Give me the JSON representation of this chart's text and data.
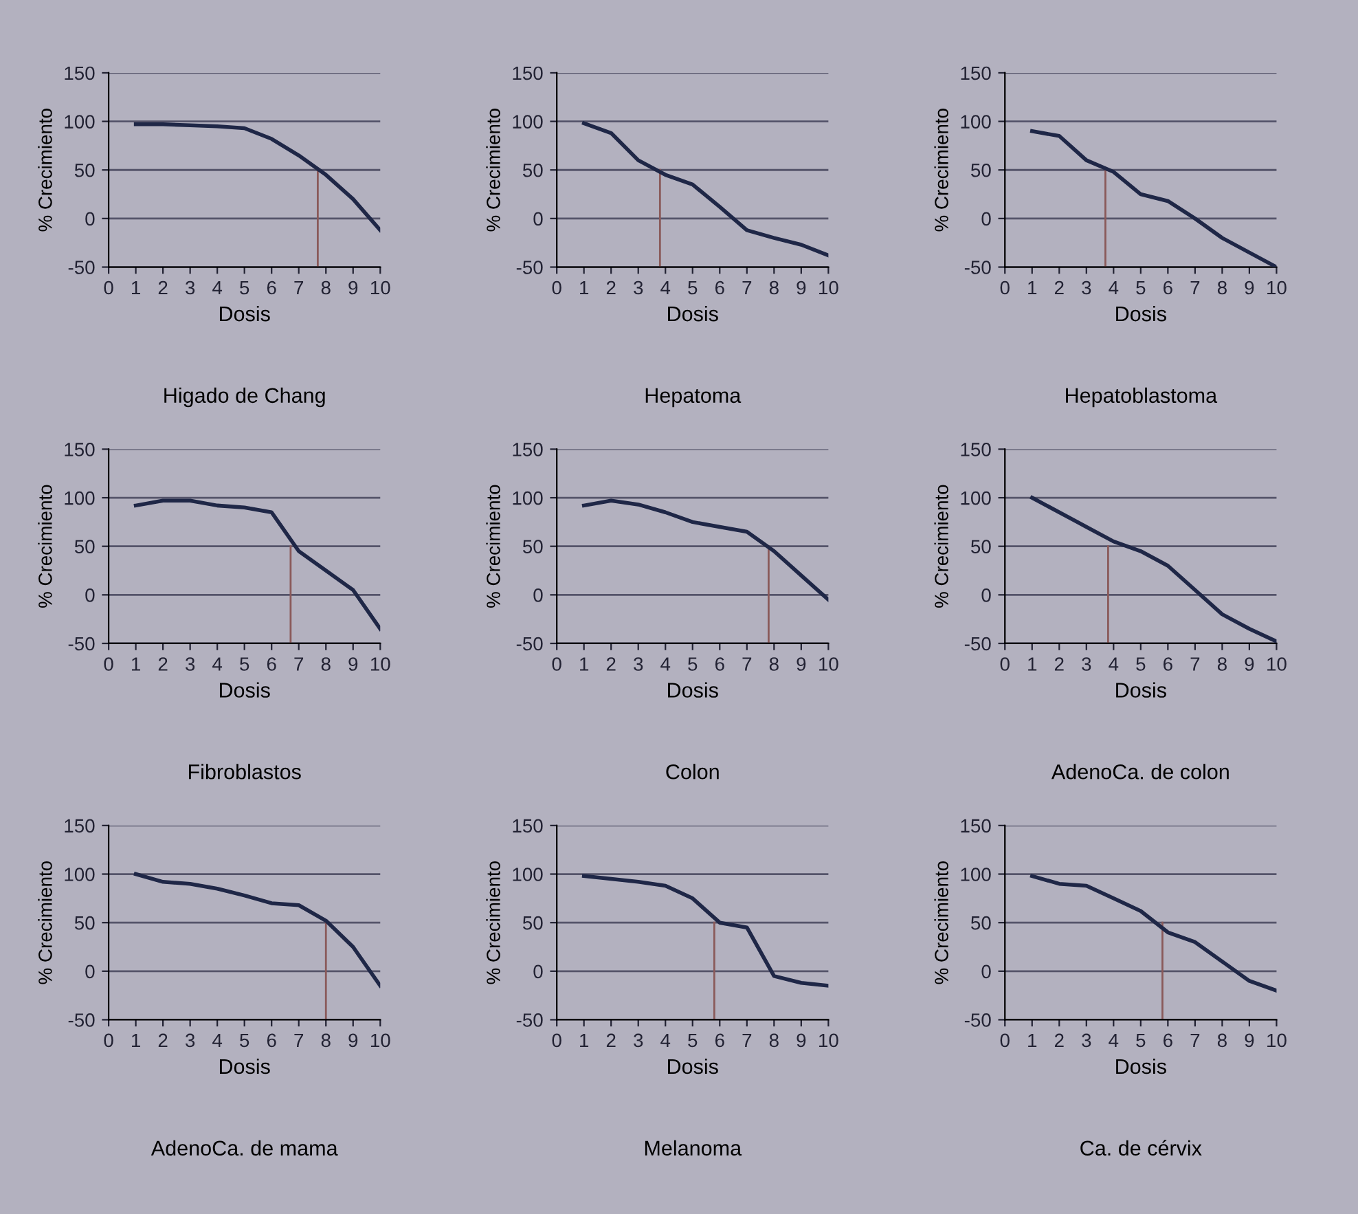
{
  "chart_data": [
    {
      "type": "line",
      "title": "Higado de Chang",
      "xlabel": "Dosis",
      "ylabel": "% Crecimiento",
      "x": [
        1,
        2,
        3,
        4,
        5,
        6,
        7,
        8,
        9,
        10
      ],
      "series": [
        {
          "color": "#1f2747",
          "values": [
            97,
            97,
            96,
            95,
            93,
            82,
            65,
            45,
            20,
            -12
          ]
        }
      ],
      "xlim": [
        0,
        10
      ],
      "xticks": [
        0,
        1,
        2,
        3,
        4,
        5,
        6,
        7,
        8,
        9,
        10
      ],
      "ylim": [
        -50,
        150
      ],
      "yticks": [
        -50,
        0,
        50,
        100,
        150
      ],
      "grid": "y",
      "ref_lines": [
        {
          "axis": "x",
          "value": 7.7,
          "color": "#8a5a5a"
        }
      ]
    },
    {
      "type": "line",
      "title": "Hepatoma",
      "xlabel": "Dosis",
      "ylabel": "% Crecimiento",
      "x": [
        1,
        2,
        3,
        4,
        5,
        6,
        7,
        8,
        9,
        10
      ],
      "series": [
        {
          "color": "#1f2747",
          "values": [
            98,
            88,
            60,
            45,
            35,
            12,
            -12,
            -20,
            -27,
            -38
          ]
        }
      ],
      "xlim": [
        0,
        10
      ],
      "xticks": [
        0,
        1,
        2,
        3,
        4,
        5,
        6,
        7,
        8,
        9,
        10
      ],
      "ylim": [
        -50,
        150
      ],
      "yticks": [
        -50,
        0,
        50,
        100,
        150
      ],
      "grid": "y",
      "ref_lines": [
        {
          "axis": "x",
          "value": 3.8,
          "color": "#8a5a5a"
        }
      ]
    },
    {
      "type": "line",
      "title": "Hepatoblastoma",
      "xlabel": "Dosis",
      "ylabel": "% Crecimiento",
      "x": [
        1,
        2,
        3,
        4,
        5,
        6,
        7,
        8,
        9,
        10
      ],
      "series": [
        {
          "color": "#1f2747",
          "values": [
            90,
            85,
            60,
            48,
            25,
            18,
            0,
            -20,
            -35,
            -50
          ]
        }
      ],
      "xlim": [
        0,
        10
      ],
      "xticks": [
        0,
        1,
        2,
        3,
        4,
        5,
        6,
        7,
        8,
        9,
        10
      ],
      "ylim": [
        -50,
        150
      ],
      "yticks": [
        -50,
        0,
        50,
        100,
        150
      ],
      "grid": "y",
      "ref_lines": [
        {
          "axis": "x",
          "value": 3.7,
          "color": "#8a5a5a"
        }
      ]
    },
    {
      "type": "line",
      "title": "Fibroblastos",
      "xlabel": "Dosis",
      "ylabel": "% Crecimiento",
      "x": [
        1,
        2,
        3,
        4,
        5,
        6,
        7,
        8,
        9,
        10
      ],
      "series": [
        {
          "color": "#1f2747",
          "values": [
            92,
            97,
            97,
            92,
            90,
            85,
            45,
            25,
            5,
            -35
          ]
        }
      ],
      "xlim": [
        0,
        10
      ],
      "xticks": [
        0,
        1,
        2,
        3,
        4,
        5,
        6,
        7,
        8,
        9,
        10
      ],
      "ylim": [
        -50,
        150
      ],
      "yticks": [
        -50,
        0,
        50,
        100,
        150
      ],
      "grid": "y",
      "ref_lines": [
        {
          "axis": "x",
          "value": 6.7,
          "color": "#8a5a5a"
        }
      ]
    },
    {
      "type": "line",
      "title": "Colon",
      "xlabel": "Dosis",
      "ylabel": "% Crecimiento",
      "x": [
        1,
        2,
        3,
        4,
        5,
        6,
        7,
        8,
        9,
        10
      ],
      "series": [
        {
          "color": "#1f2747",
          "values": [
            92,
            97,
            93,
            85,
            75,
            70,
            65,
            45,
            20,
            -5
          ]
        }
      ],
      "xlim": [
        0,
        10
      ],
      "xticks": [
        0,
        1,
        2,
        3,
        4,
        5,
        6,
        7,
        8,
        9,
        10
      ],
      "ylim": [
        -50,
        150
      ],
      "yticks": [
        -50,
        0,
        50,
        100,
        150
      ],
      "grid": "y",
      "ref_lines": [
        {
          "axis": "x",
          "value": 7.8,
          "color": "#8a5a5a"
        }
      ]
    },
    {
      "type": "line",
      "title": "AdenoCa. de colon",
      "xlabel": "Dosis",
      "ylabel": "% Crecimiento",
      "x": [
        1,
        2,
        3,
        4,
        5,
        6,
        7,
        8,
        9,
        10
      ],
      "series": [
        {
          "color": "#1f2747",
          "values": [
            100,
            85,
            70,
            55,
            45,
            30,
            5,
            -20,
            -35,
            -48
          ]
        }
      ],
      "xlim": [
        0,
        10
      ],
      "xticks": [
        0,
        1,
        2,
        3,
        4,
        5,
        6,
        7,
        8,
        9,
        10
      ],
      "ylim": [
        -50,
        150
      ],
      "yticks": [
        -50,
        0,
        50,
        100,
        150
      ],
      "grid": "y",
      "ref_lines": [
        {
          "axis": "x",
          "value": 3.8,
          "color": "#8a5a5a"
        }
      ]
    },
    {
      "type": "line",
      "title": "AdenoCa. de mama",
      "xlabel": "Dosis",
      "ylabel": "% Crecimiento",
      "x": [
        1,
        2,
        3,
        4,
        5,
        6,
        7,
        8,
        9,
        10
      ],
      "series": [
        {
          "color": "#1f2747",
          "values": [
            100,
            92,
            90,
            85,
            78,
            70,
            68,
            52,
            25,
            -15
          ]
        }
      ],
      "xlim": [
        0,
        10
      ],
      "xticks": [
        0,
        1,
        2,
        3,
        4,
        5,
        6,
        7,
        8,
        9,
        10
      ],
      "ylim": [
        -50,
        150
      ],
      "yticks": [
        -50,
        0,
        50,
        100,
        150
      ],
      "grid": "y",
      "ref_lines": [
        {
          "axis": "x",
          "value": 8.0,
          "color": "#8a5a5a"
        }
      ]
    },
    {
      "type": "line",
      "title": "Melanoma",
      "xlabel": "Dosis",
      "ylabel": "% Crecimiento",
      "x": [
        1,
        2,
        3,
        4,
        5,
        6,
        7,
        8,
        9,
        10
      ],
      "series": [
        {
          "color": "#1f2747",
          "values": [
            98,
            95,
            92,
            88,
            75,
            50,
            45,
            -5,
            -12,
            -15
          ]
        }
      ],
      "xlim": [
        0,
        10
      ],
      "xticks": [
        0,
        1,
        2,
        3,
        4,
        5,
        6,
        7,
        8,
        9,
        10
      ],
      "ylim": [
        -50,
        150
      ],
      "yticks": [
        -50,
        0,
        50,
        100,
        150
      ],
      "grid": "y",
      "ref_lines": [
        {
          "axis": "x",
          "value": 5.8,
          "color": "#8a5a5a"
        }
      ]
    },
    {
      "type": "line",
      "title": "Ca. de cérvix",
      "xlabel": "Dosis",
      "ylabel": "% Crecimiento",
      "x": [
        1,
        2,
        3,
        4,
        5,
        6,
        7,
        8,
        9,
        10
      ],
      "series": [
        {
          "color": "#1f2747",
          "values": [
            98,
            90,
            88,
            75,
            62,
            40,
            30,
            10,
            -10,
            -20
          ]
        }
      ],
      "xlim": [
        0,
        10
      ],
      "xticks": [
        0,
        1,
        2,
        3,
        4,
        5,
        6,
        7,
        8,
        9,
        10
      ],
      "ylim": [
        -50,
        150
      ],
      "yticks": [
        -50,
        0,
        50,
        100,
        150
      ],
      "grid": "y",
      "ref_lines": [
        {
          "axis": "x",
          "value": 5.8,
          "color": "#8a5a5a"
        }
      ]
    }
  ]
}
